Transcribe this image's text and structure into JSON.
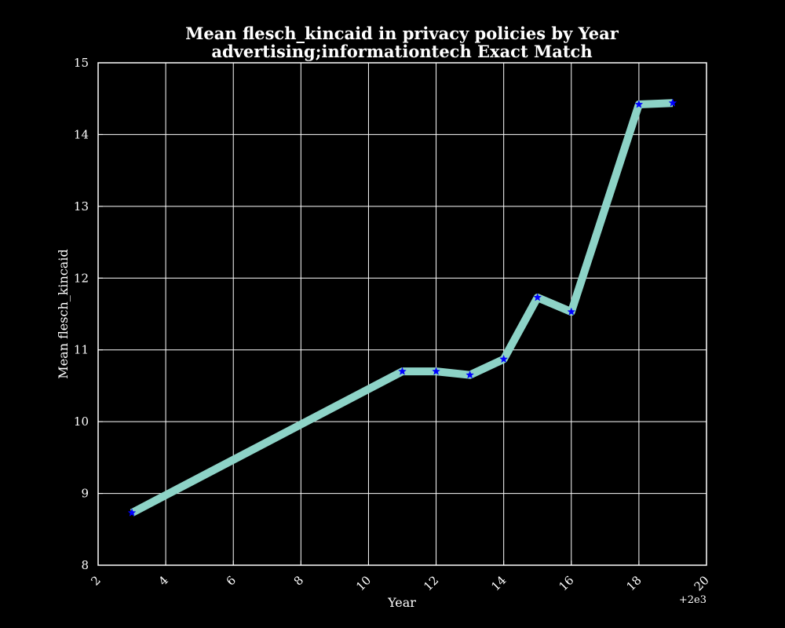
{
  "chart_data": {
    "type": "line",
    "title": "Mean flesch_kincaid in privacy policies by Year",
    "subtitle": "advertising;informationtech Exact Match",
    "xlabel": "Year",
    "ylabel": "Mean flesch_kincaid",
    "x_offset_label": "+2e3",
    "xlim": [
      2,
      20
    ],
    "ylim": [
      8,
      15
    ],
    "x_ticks": [
      2,
      4,
      6,
      8,
      10,
      12,
      14,
      16,
      18,
      20
    ],
    "y_ticks": [
      8,
      9,
      10,
      11,
      12,
      13,
      14,
      15
    ],
    "grid": true,
    "legend": "none",
    "series": [
      {
        "x": [
          3,
          11,
          12,
          13,
          14,
          15,
          16,
          18,
          19
        ],
        "values": [
          8.73,
          10.7,
          10.7,
          10.65,
          10.87,
          11.73,
          11.53,
          14.42,
          14.44
        ],
        "line_color": "#8dd3c7",
        "marker": "star",
        "marker_color": "#0000ff"
      }
    ]
  },
  "colors": {
    "background": "#000000",
    "axes": "#ffffff",
    "grid": "#ffffff"
  }
}
